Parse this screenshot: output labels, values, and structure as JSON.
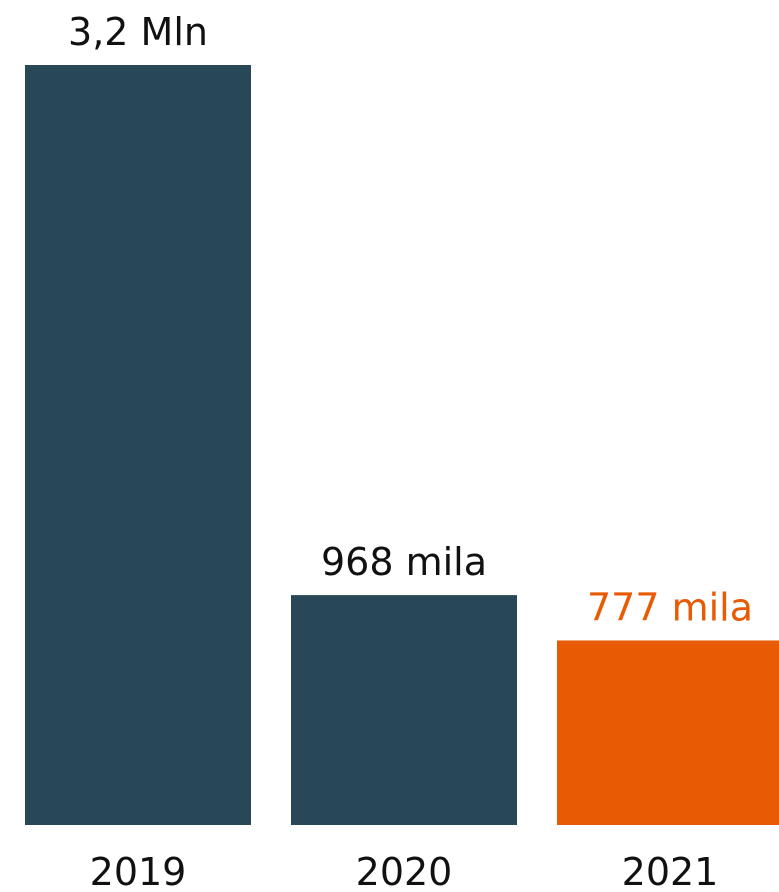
{
  "chart_data": {
    "type": "bar",
    "categories": [
      "2019",
      "2020",
      "2021"
    ],
    "values": [
      3200000,
      968000,
      777000
    ],
    "data_labels": [
      "3,2 Mln",
      "968 mila",
      "777 mila"
    ],
    "bar_colors": [
      "#284858",
      "#284858",
      "#e85a04"
    ],
    "label_colors": [
      "#111111",
      "#111111",
      "#e85a04"
    ],
    "title": "",
    "xlabel": "",
    "ylabel": "",
    "ylim": [
      0,
      3200000
    ],
    "grid": false,
    "legend": "none"
  }
}
